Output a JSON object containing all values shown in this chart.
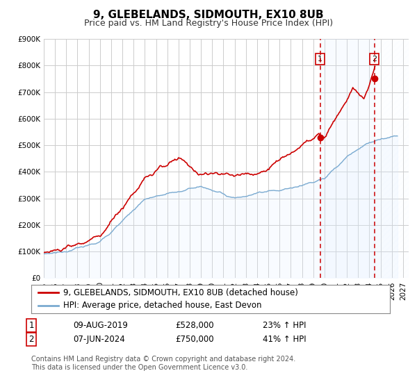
{
  "title": "9, GLEBELANDS, SIDMOUTH, EX10 8UB",
  "subtitle": "Price paid vs. HM Land Registry's House Price Index (HPI)",
  "ylim": [
    0,
    900000
  ],
  "xlim_start": 1995.0,
  "xlim_end": 2027.5,
  "ytick_labels": [
    "£0",
    "£100K",
    "£200K",
    "£300K",
    "£400K",
    "£500K",
    "£600K",
    "£700K",
    "£800K",
    "£900K"
  ],
  "ytick_values": [
    0,
    100000,
    200000,
    300000,
    400000,
    500000,
    600000,
    700000,
    800000,
    900000
  ],
  "xtick_years": [
    1995,
    1996,
    1997,
    1998,
    1999,
    2000,
    2001,
    2002,
    2003,
    2004,
    2005,
    2006,
    2007,
    2008,
    2009,
    2010,
    2011,
    2012,
    2013,
    2014,
    2015,
    2016,
    2017,
    2018,
    2019,
    2020,
    2021,
    2022,
    2023,
    2024,
    2025,
    2026,
    2027
  ],
  "red_line_color": "#cc0000",
  "blue_line_color": "#7aaad0",
  "blue_fill_color": "#ddeeff",
  "marker1_date": 2019.608,
  "marker1_value": 528000,
  "marker2_date": 2024.436,
  "marker2_value": 750000,
  "vline_color": "#cc0000",
  "background_color": "#ffffff",
  "grid_color": "#cccccc",
  "legend_label_red": "9, GLEBELANDS, SIDMOUTH, EX10 8UB (detached house)",
  "legend_label_blue": "HPI: Average price, detached house, East Devon",
  "marker1_date_str": "09-AUG-2019",
  "marker1_price": "£528,000",
  "marker1_hpi": "23% ↑ HPI",
  "marker2_date_str": "07-JUN-2024",
  "marker2_price": "£750,000",
  "marker2_hpi": "41% ↑ HPI",
  "footer_text": "Contains HM Land Registry data © Crown copyright and database right 2024.\nThis data is licensed under the Open Government Licence v3.0.",
  "title_fontsize": 11,
  "subtitle_fontsize": 9,
  "tick_fontsize": 7.5,
  "legend_fontsize": 8.5,
  "annotation_fontsize": 8.5
}
